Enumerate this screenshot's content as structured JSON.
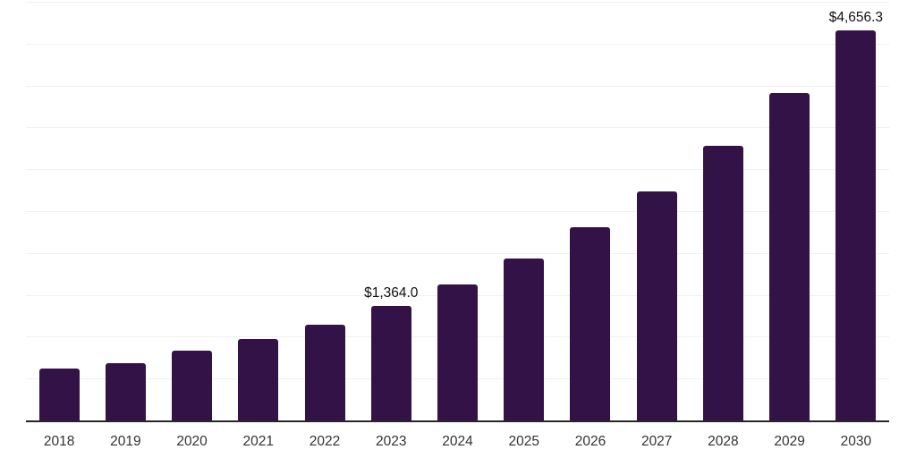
{
  "chart_data": {
    "type": "bar",
    "title": "",
    "xlabel": "",
    "ylabel": "",
    "categories": [
      "2018",
      "2019",
      "2020",
      "2021",
      "2022",
      "2023",
      "2024",
      "2025",
      "2026",
      "2027",
      "2028",
      "2029",
      "2030"
    ],
    "values": [
      616,
      680,
      828,
      977,
      1147,
      1364.0,
      1620,
      1933,
      2305,
      2740,
      3282,
      3908,
      4656.3
    ],
    "data_labels": {
      "2023": "$1,364.0",
      "2030": "$4,656.3"
    },
    "ylim": [
      0,
      5000
    ],
    "gridline_step": 500,
    "grid": "horizontal-only",
    "legend": "none",
    "colors": {
      "bar": "#331347",
      "axis_line": "#262626",
      "gridline": "#f1f1f1",
      "tick_label": "#333333",
      "data_label": "#111111",
      "background": "#ffffff"
    }
  }
}
